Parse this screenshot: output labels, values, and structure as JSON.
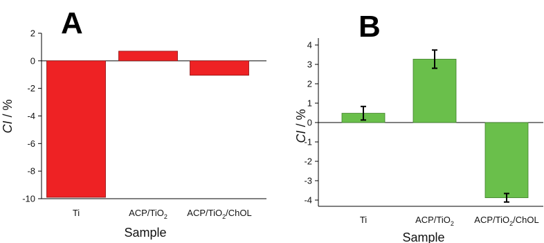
{
  "chart_data": [
    {
      "panel_label": "A",
      "type": "bar",
      "categories": [
        {
          "base": "Ti",
          "sub": "",
          "tail": ""
        },
        {
          "base": "ACP/TiO",
          "sub": "2",
          "tail": ""
        },
        {
          "base": "ACP/TiO",
          "sub": "2",
          "tail": "/ChOL"
        }
      ],
      "values": [
        -9.9,
        0.7,
        -1.05
      ],
      "errors": null,
      "color": "#ee2224",
      "edge_color": "#8a1010",
      "xlabel": "Sample",
      "ylabel_italic": "CI",
      "ylabel_rest": " / %",
      "ylim": [
        -10,
        2
      ],
      "yticks": [
        2,
        0,
        -2,
        -4,
        -6,
        -8,
        -10
      ],
      "grid": false
    },
    {
      "panel_label": "B",
      "type": "bar",
      "categories": [
        {
          "base": "Ti",
          "sub": "",
          "tail": ""
        },
        {
          "base": "ACP/TiO",
          "sub": "2",
          "tail": ""
        },
        {
          "base": "ACP/TiO",
          "sub": "2",
          "tail": "/ChOL"
        }
      ],
      "values": [
        0.48,
        3.27,
        -3.88
      ],
      "errors": [
        0.35,
        0.47,
        0.22
      ],
      "color": "#6abf4b",
      "edge_color": "#3f7f2a",
      "xlabel": "Sample",
      "ylabel_italic": "CI",
      "ylabel_rest": " / %",
      "ylim": [
        -4.2,
        4.4
      ],
      "yticks": [
        4,
        3,
        2,
        1,
        0,
        -1,
        -2,
        -3,
        -4
      ],
      "grid": false
    }
  ]
}
